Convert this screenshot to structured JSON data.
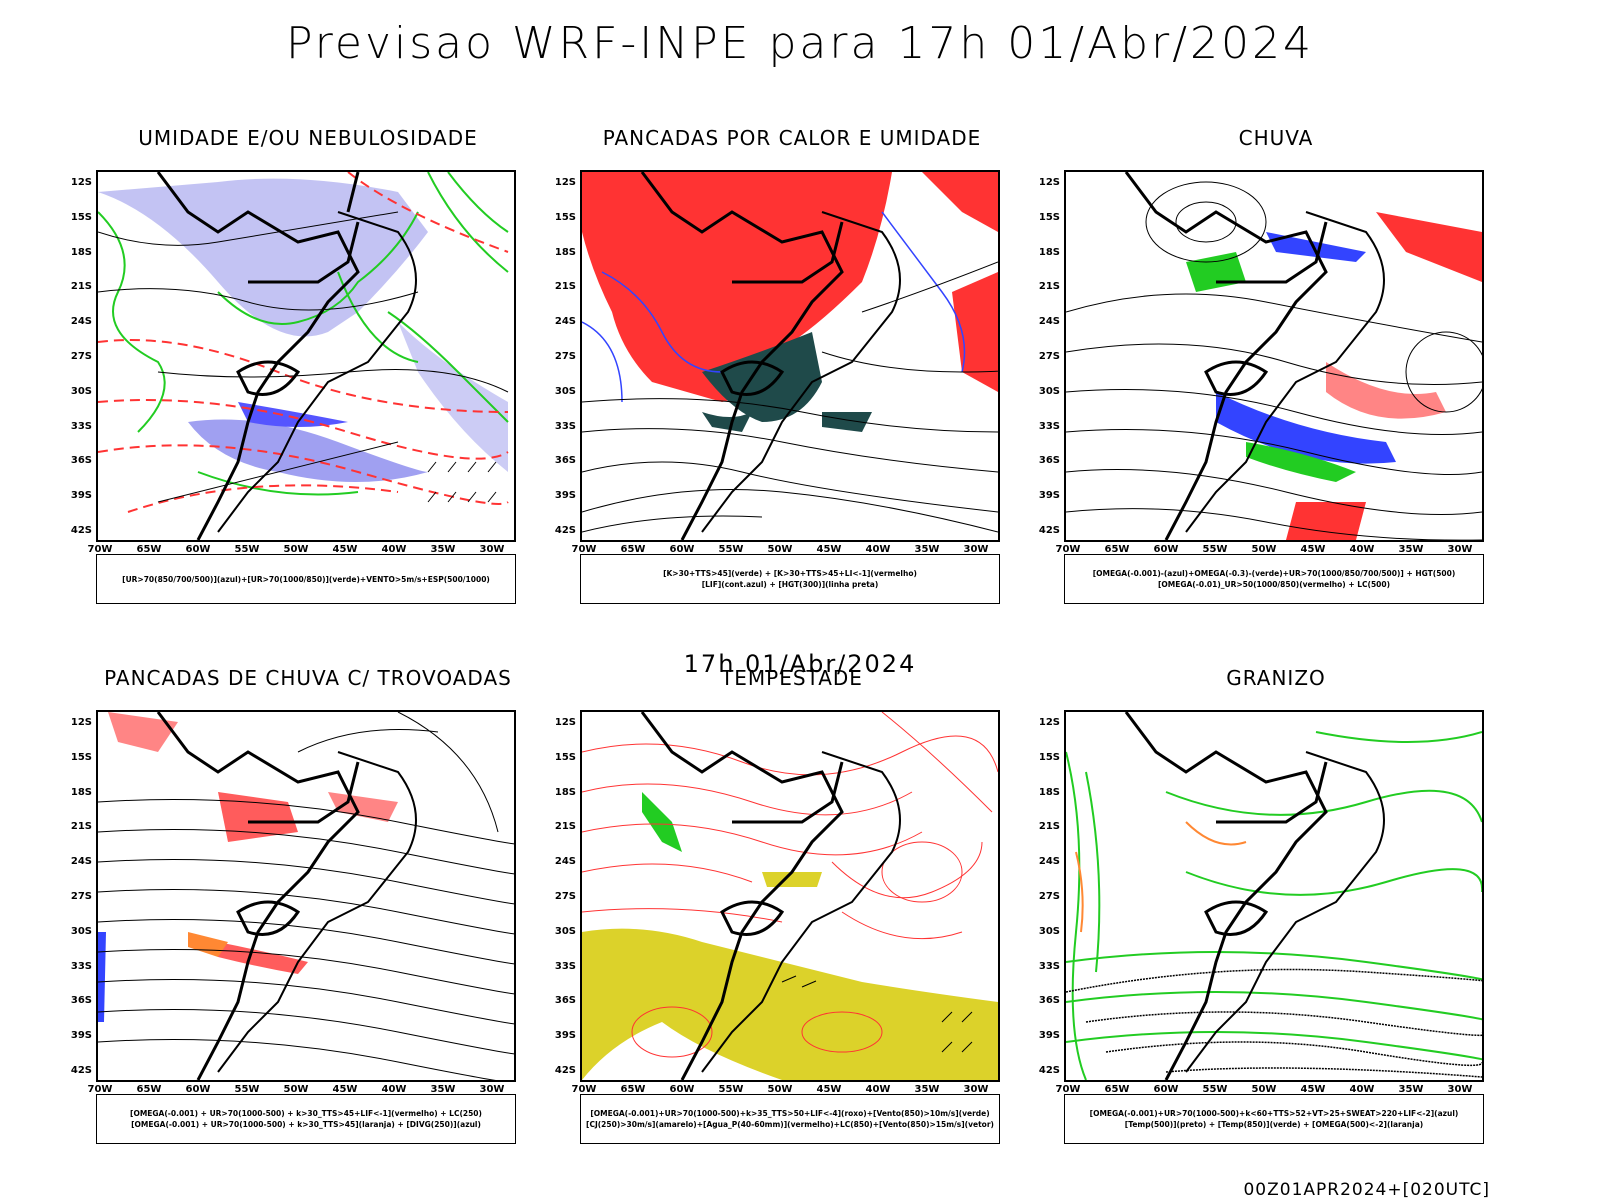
{
  "title": "Previsao WRF-INPE  para 17h 01/Abr/2024",
  "subtitle": "17h 01/Abr/2024",
  "footer": "00Z01APR2024+[020UTC]",
  "lat_ticks": [
    "12S",
    "15S",
    "18S",
    "21S",
    "24S",
    "27S",
    "30S",
    "33S",
    "36S",
    "39S",
    "42S"
  ],
  "lon_ticks": [
    "70W",
    "65W",
    "60W",
    "55W",
    "50W",
    "45W",
    "40W",
    "35W",
    "30W"
  ],
  "colors": {
    "blue": "#3344ff",
    "green": "#22cc22",
    "red": "#ff3333",
    "lavender": "#aaaaee",
    "darkteal": "#1f4a4a",
    "yellow": "#dcd22a",
    "orange": "#ff8833",
    "magenta": "#cc22cc"
  },
  "panels": [
    {
      "title": "UMIDADE E/OU NEBULOSIDADE",
      "legend": [
        "[UR>70(850/700/500)](azul)+[UR>70(1000/850)](verde)+VENTO>5m/s+ESP(500/1000)"
      ]
    },
    {
      "title": "PANCADAS POR CALOR E UMIDADE",
      "legend": [
        "[K>30+TTS>45](verde) + [K>30+TTS>45+LI<-1](vermelho)",
        "[LIF](cont.azul) + [HGT(300)](linha preta)"
      ]
    },
    {
      "title": "CHUVA",
      "legend": [
        "[OMEGA(-0.001)-(azul)+OMEGA(-0.3)-(verde)+UR>70(1000/850/700/500)] + HGT(500)",
        "[OMEGA(-0.01)_UR>50(1000/850)(vermelho) + LC(500)"
      ]
    },
    {
      "title": "PANCADAS DE CHUVA C/ TROVOADAS",
      "legend": [
        "[OMEGA(-0.001) + UR>70(1000-500) + k>30_TTS>45+LIF<-1](vermelho) + LC(250)",
        "[OMEGA(-0.001) + UR>70(1000-500) + k>30_TTS>45](laranja) + [DIVG(250)](azul)"
      ]
    },
    {
      "title": "TEMPESTADE",
      "legend": [
        "[OMEGA(-0.001)+UR>70(1000-500)+k>35_TTS>50+LIF<-4](roxo)+[Vento(850)>10m/s](verde)",
        "[CJ(250)>30m/s](amarelo)+[Agua_P(40-60mm)](vermelho)+LC(850)+[Vento(850)>15m/s](vetor)"
      ]
    },
    {
      "title": "GRANIZO",
      "legend": [
        "[OMEGA(-0.001)+UR>70(1000-500)+k<60+TTS>52+VT>25+SWEAT>220+LIF<-2](azul)",
        "[Temp(500)](preto) + [Temp(850)](verde) + [OMEGA(500)<-2](laranja)"
      ]
    }
  ]
}
